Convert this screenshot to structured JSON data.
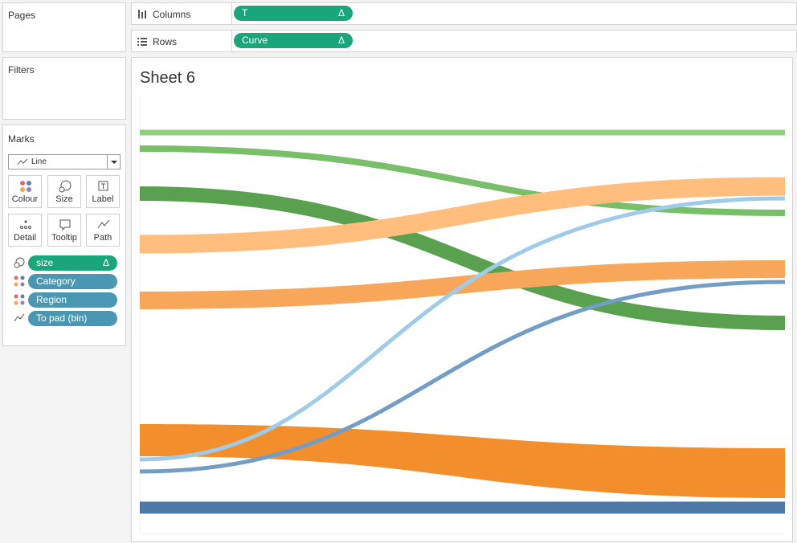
{
  "panels": {
    "pages": "Pages",
    "filters": "Filters"
  },
  "marks": {
    "title": "Marks",
    "mark_type": "Line",
    "buttons": [
      "Colour",
      "Size",
      "Label",
      "Detail",
      "Tooltip",
      "Path"
    ],
    "pills": [
      {
        "label": "size",
        "suffix": "Δ"
      },
      {
        "label": "Category"
      },
      {
        "label": "Region"
      },
      {
        "label": "To pad (bin)"
      }
    ]
  },
  "shelves": [
    {
      "name": "Columns",
      "pill": "T",
      "suffix": "Δ"
    },
    {
      "name": "Rows",
      "pill": "Curve",
      "suffix": "Δ"
    }
  ],
  "sheet": {
    "title": "Sheet 6"
  }
}
